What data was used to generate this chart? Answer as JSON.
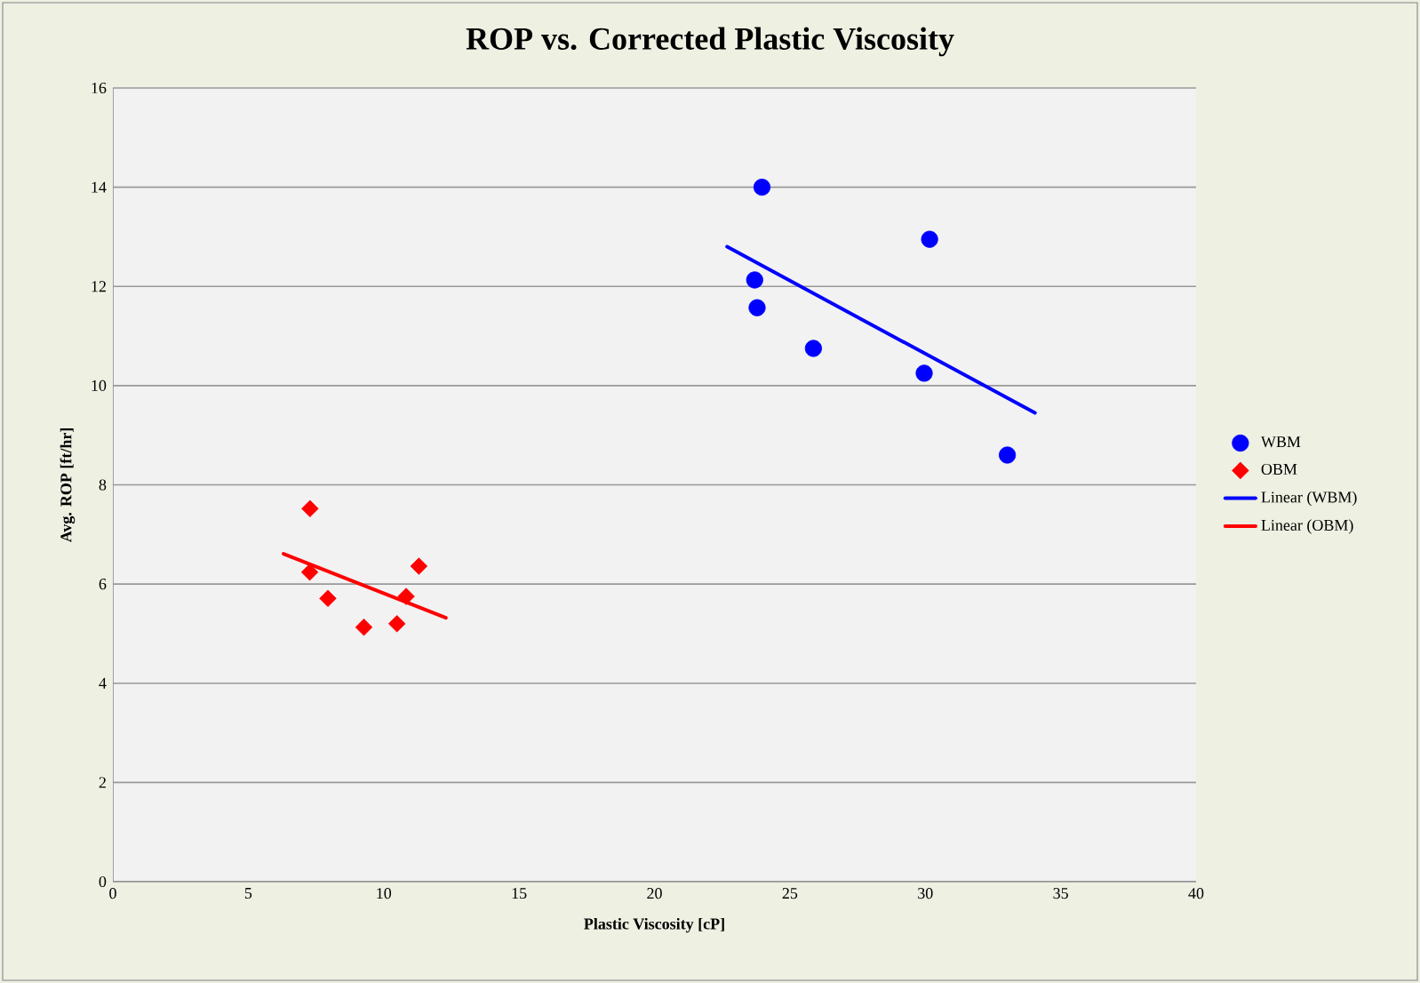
{
  "chart_data": {
    "type": "scatter",
    "title": "ROP vs.  Corrected Plastic Viscosity",
    "xlabel": "Plastic Viscosity [cP]",
    "ylabel": "Avg. ROP [ft/hr]",
    "xlim": [
      0,
      40
    ],
    "ylim": [
      0,
      16
    ],
    "xticks": [
      0,
      5,
      10,
      15,
      20,
      25,
      30,
      35,
      40
    ],
    "yticks": [
      0,
      2,
      4,
      6,
      8,
      10,
      12,
      14,
      16
    ],
    "grid": "y",
    "legend": "right",
    "series": [
      {
        "name": "WBM",
        "marker": "circle",
        "color": "#0000ff",
        "x": [
          23.97,
          30.16,
          23.7,
          23.79,
          25.87,
          29.96,
          33.03
        ],
        "values": [
          14.0,
          12.95,
          12.13,
          11.57,
          10.75,
          10.25,
          8.6
        ]
      },
      {
        "name": "OBM",
        "marker": "diamond",
        "color": "#ff0000",
        "x": [
          7.28,
          7.27,
          7.94,
          9.27,
          10.49,
          10.83,
          11.3
        ],
        "values": [
          7.52,
          6.24,
          5.71,
          5.13,
          5.2,
          5.75,
          6.36
        ]
      },
      {
        "name": "Linear (WBM)",
        "type": "line",
        "marker": "none",
        "color": "#0000ff",
        "x": [
          22.68,
          34.05
        ],
        "values": [
          12.8,
          9.45
        ]
      },
      {
        "name": "Linear (OBM)",
        "type": "line",
        "marker": "none",
        "color": "#ff0000",
        "x": [
          6.3,
          12.3
        ],
        "values": [
          6.61,
          5.32
        ]
      }
    ]
  }
}
